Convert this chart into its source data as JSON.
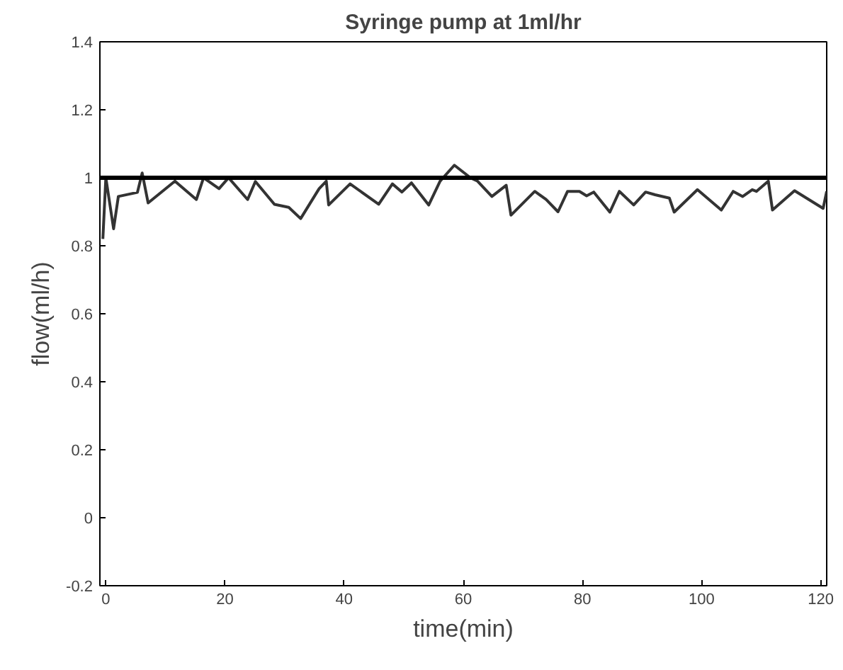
{
  "chart_data": {
    "type": "line",
    "title": "Syringe pump at 1ml/hr",
    "xlabel": "time(min)",
    "ylabel": "flow(ml/h)",
    "x": [
      -0.5,
      0,
      1.3,
      2.1,
      5.3,
      6.1,
      7.1,
      11.6,
      15.2,
      16.4,
      19,
      20.6,
      23.8,
      25.1,
      28.3,
      30.7,
      32.7,
      35.8,
      37,
      37.4,
      41,
      45.8,
      48.1,
      49.7,
      51.3,
      54.2,
      56.1,
      58.5,
      61.2,
      62.4,
      64.8,
      67.2,
      68,
      72,
      73.9,
      75.9,
      77.5,
      79.5,
      80.7,
      81.9,
      84.6,
      86.2,
      88.6,
      90.6,
      92.2,
      94.6,
      95.4,
      99.3,
      103.3,
      105.3,
      106.9,
      108.5,
      109.2,
      111.2,
      111.9,
      115.6,
      120.4,
      121
    ],
    "series": [
      {
        "color": "#333333",
        "values": [
          0.82,
          1.0,
          0.85,
          0.945,
          0.957,
          1.014,
          0.926,
          0.99,
          0.936,
          1.0,
          0.968,
          1.0,
          0.936,
          0.989,
          0.922,
          0.913,
          0.88,
          0.968,
          0.99,
          0.92,
          0.982,
          0.922,
          0.982,
          0.958,
          0.985,
          0.92,
          0.99,
          1.037,
          1.0,
          0.99,
          0.945,
          0.978,
          0.89,
          0.96,
          0.936,
          0.9,
          0.96,
          0.96,
          0.947,
          0.958,
          0.899,
          0.96,
          0.92,
          0.958,
          0.95,
          0.94,
          0.899,
          0.965,
          0.905,
          0.96,
          0.945,
          0.965,
          0.96,
          0.99,
          0.905,
          0.962,
          0.91,
          0.96
        ]
      }
    ],
    "ref_lines": [
      {
        "axis": "y",
        "value": 1,
        "color": "#000000"
      }
    ],
    "xlim": [
      -1,
      121
    ],
    "ylim": [
      -0.2,
      1.4
    ],
    "xticks": [
      0,
      20,
      40,
      60,
      80,
      100,
      120
    ],
    "yticks": [
      -0.2,
      0,
      0.2,
      0.4,
      0.6,
      0.8,
      1,
      1.2,
      1.4
    ],
    "grid": false,
    "line_style": "solid",
    "marker": "none"
  }
}
